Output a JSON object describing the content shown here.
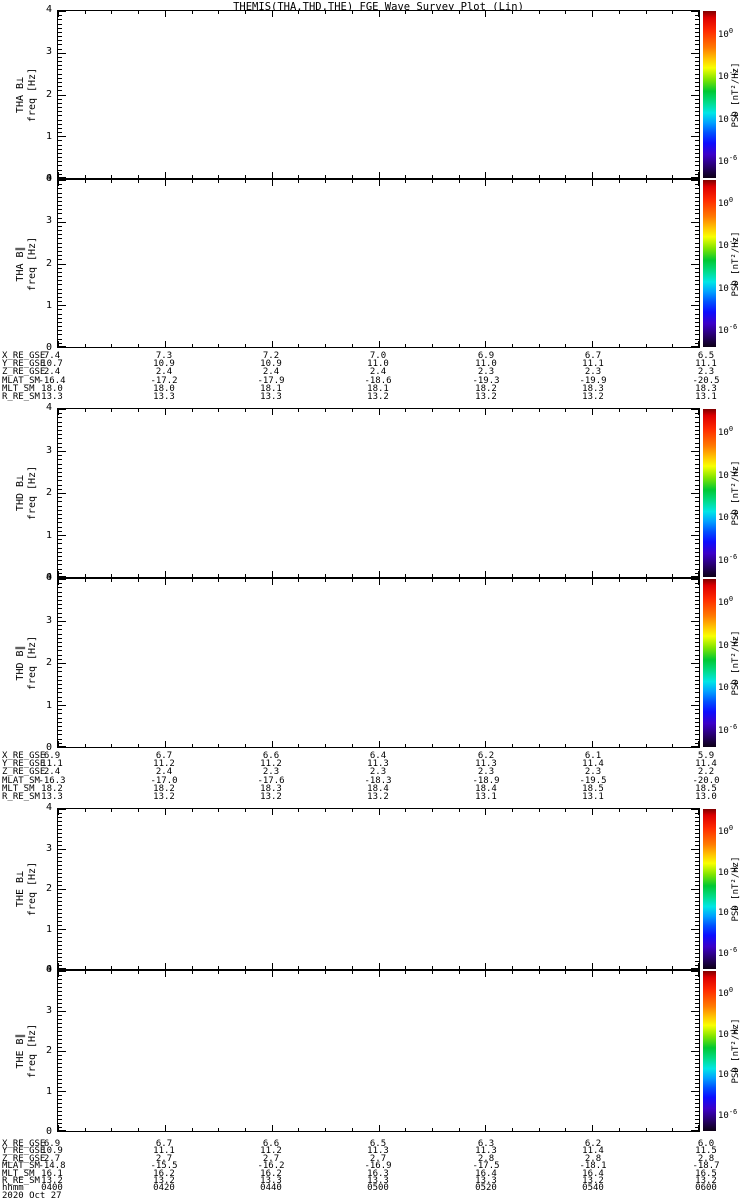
{
  "title": "THEMIS(THA,THD,THE) FGE Wave Survey Plot (Lin)",
  "date_label": "2020 Oct 27",
  "colors": {
    "foreground": "#000000",
    "background": "#ffffff",
    "colorbar_gradient": [
      [
        "0%",
        "#7f0000"
      ],
      [
        "4%",
        "#dd0000"
      ],
      [
        "12%",
        "#ff2a00"
      ],
      [
        "22%",
        "#ff7a00"
      ],
      [
        "29%",
        "#ffc800"
      ],
      [
        "34%",
        "#f8ff00"
      ],
      [
        "41%",
        "#7fe400"
      ],
      [
        "48%",
        "#00c832"
      ],
      [
        "55%",
        "#00dc8c"
      ],
      [
        "61%",
        "#00e6e6"
      ],
      [
        "67%",
        "#00a0ff"
      ],
      [
        "73%",
        "#0050ff"
      ],
      [
        "79%",
        "#0d0dff"
      ],
      [
        "86%",
        "#3c00c8"
      ],
      [
        "93%",
        "#28006e"
      ],
      [
        "100%",
        "#0c0014"
      ]
    ]
  },
  "chart_data": {
    "type": "heatmap",
    "title": "THEMIS(THA,THD,THE) FGE Wave Survey Plot (Lin)",
    "ylabel": "freq [Hz]",
    "ylim": [
      0,
      4
    ],
    "y_ticks": [
      "0",
      "1",
      "2",
      "3",
      "4"
    ],
    "colorbar": {
      "label": "PSD [nT²/Hz]",
      "scale": "log",
      "tick_labels": [
        {
          "base": "10",
          "exp": "0"
        },
        {
          "base": "10",
          "exp": "-2"
        },
        {
          "base": "10",
          "exp": "-4"
        },
        {
          "base": "10",
          "exp": "-6"
        }
      ]
    },
    "panels": [
      {
        "id": "tha-bperp",
        "label": "THA B⊥",
        "psd_values": []
      },
      {
        "id": "tha-bpar",
        "label": "THA B∥",
        "psd_values": []
      },
      {
        "id": "thd-bperp",
        "label": "THD B⊥",
        "psd_values": []
      },
      {
        "id": "thd-bpar",
        "label": "THD B∥",
        "psd_values": []
      },
      {
        "id": "the-bperp",
        "label": "THE B⊥",
        "psd_values": []
      },
      {
        "id": "the-bpar",
        "label": "THE B∥",
        "psd_values": []
      }
    ],
    "ephemeris_blocks": [
      {
        "spacecraft": "THA",
        "rows": [
          {
            "label": "X_RE_GSE",
            "values": [
              "7.4",
              "7.3",
              "7.2",
              "7.0",
              "6.9",
              "6.7",
              "6.5"
            ]
          },
          {
            "label": "Y_RE_GSE",
            "values": [
              "10.7",
              "10.9",
              "10.9",
              "11.0",
              "11.0",
              "11.1",
              "11.1"
            ]
          },
          {
            "label": "Z_RE_GSE",
            "values": [
              "2.4",
              "2.4",
              "2.4",
              "2.4",
              "2.3",
              "2.3",
              "2.3"
            ]
          },
          {
            "label": "MLAT_SM",
            "values": [
              "-16.4",
              "-17.2",
              "-17.9",
              "-18.6",
              "-19.3",
              "-19.9",
              "-20.5"
            ]
          },
          {
            "label": "MLT_SM",
            "values": [
              "18.0",
              "18.0",
              "18.1",
              "18.1",
              "18.2",
              "18.3",
              "18.3"
            ]
          },
          {
            "label": "R_RE_SM",
            "values": [
              "13.3",
              "13.3",
              "13.3",
              "13.2",
              "13.2",
              "13.2",
              "13.1"
            ]
          }
        ]
      },
      {
        "spacecraft": "THD",
        "rows": [
          {
            "label": "X_RE_GSE",
            "values": [
              "6.9",
              "6.7",
              "6.6",
              "6.4",
              "6.2",
              "6.1",
              "5.9"
            ]
          },
          {
            "label": "Y_RE_GSE",
            "values": [
              "11.1",
              "11.2",
              "11.2",
              "11.3",
              "11.3",
              "11.4",
              "11.4"
            ]
          },
          {
            "label": "Z_RE_GSE",
            "values": [
              "2.4",
              "2.4",
              "2.3",
              "2.3",
              "2.3",
              "2.3",
              "2.2"
            ]
          },
          {
            "label": "MLAT_SM",
            "values": [
              "-16.3",
              "-17.0",
              "-17.6",
              "-18.3",
              "-18.9",
              "-19.5",
              "-20.0"
            ]
          },
          {
            "label": "MLT_SM",
            "values": [
              "18.2",
              "18.2",
              "18.3",
              "18.4",
              "18.4",
              "18.5",
              "18.5"
            ]
          },
          {
            "label": "R_RE_SM",
            "values": [
              "13.3",
              "13.2",
              "13.2",
              "13.2",
              "13.1",
              "13.1",
              "13.0"
            ]
          }
        ]
      },
      {
        "spacecraft": "THE",
        "rows": [
          {
            "label": "X_RE_GSE",
            "values": [
              "6.9",
              "6.7",
              "6.6",
              "6.5",
              "6.3",
              "6.2",
              "6.0"
            ]
          },
          {
            "label": "Y_RE_GSE",
            "values": [
              "10.9",
              "11.1",
              "11.2",
              "11.3",
              "11.3",
              "11.4",
              "11.5"
            ]
          },
          {
            "label": "Z_RE_GSE",
            "values": [
              "2.7",
              "2.7",
              "2.7",
              "2.7",
              "2.8",
              "2.8",
              "2.8"
            ]
          },
          {
            "label": "MLAT_SM",
            "values": [
              "-14.8",
              "-15.5",
              "-16.2",
              "-16.9",
              "-17.5",
              "-18.1",
              "-18.7"
            ]
          },
          {
            "label": "MLT_SM",
            "values": [
              "16.1",
              "16.2",
              "16.2",
              "16.3",
              "16.4",
              "16.4",
              "16.5"
            ]
          },
          {
            "label": "R_RE_SM",
            "values": [
              "13.2",
              "13.2",
              "13.3",
              "13.3",
              "13.3",
              "13.2",
              "13.2"
            ]
          }
        ]
      }
    ],
    "time_row": {
      "label": "hhmm",
      "values": [
        "0400",
        "0420",
        "0440",
        "0500",
        "0520",
        "0540",
        "0600"
      ]
    }
  }
}
